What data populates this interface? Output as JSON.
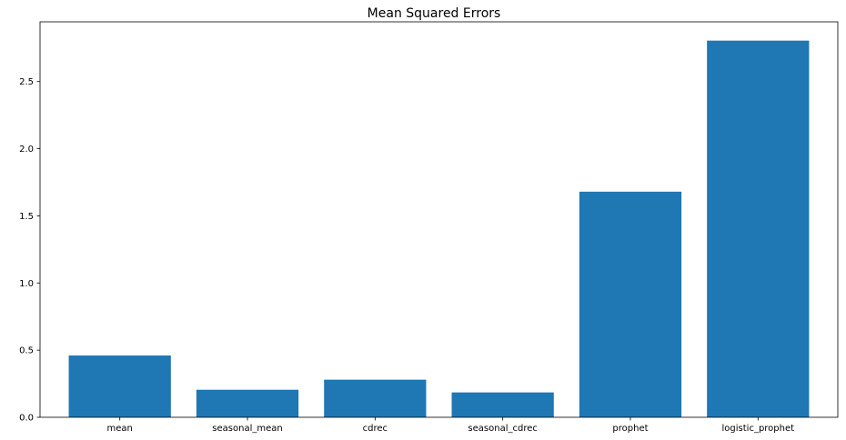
{
  "chart_data": {
    "type": "bar",
    "title": "Mean Squared Errors",
    "xlabel": "",
    "ylabel": "",
    "categories": [
      "mean",
      "seasonal_mean",
      "cdrec",
      "seasonal_cdrec",
      "prophet",
      "logistic_prophet"
    ],
    "values": [
      0.46,
      0.205,
      0.28,
      0.185,
      1.68,
      2.805
    ],
    "ylim": [
      0,
      2.945
    ],
    "yticks": [
      0.0,
      0.5,
      1.0,
      1.5,
      2.0,
      2.5
    ],
    "ytick_labels": [
      "0.0",
      "0.5",
      "1.0",
      "1.5",
      "2.0",
      "2.5"
    ],
    "bar_color": "#1f77b4",
    "grid": false,
    "legend": "none"
  }
}
